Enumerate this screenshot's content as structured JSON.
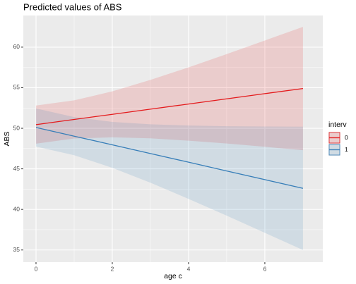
{
  "chart_data": {
    "type": "line",
    "title": "Predicted values of ABS",
    "x_label": "age c",
    "y_label": "ABS",
    "legend_title": "interv",
    "x": [
      0,
      1,
      2,
      3,
      4,
      5,
      6,
      7
    ],
    "xlim": [
      -0.333,
      7.52
    ],
    "xticks": [
      0,
      2,
      4,
      6
    ],
    "ylim": [
      33.5,
      63.9
    ],
    "yticks": [
      35,
      40,
      45,
      50,
      55,
      60
    ],
    "grid": true,
    "series": [
      {
        "name": "0",
        "color": "#e41a1c",
        "values": [
          50.45,
          51.09,
          51.72,
          52.36,
          52.99,
          53.63,
          54.27,
          54.9
        ],
        "upper": [
          52.8,
          53.44,
          54.55,
          55.96,
          57.51,
          59.14,
          60.82,
          62.5
        ],
        "lower": [
          48.1,
          48.74,
          48.89,
          48.76,
          48.47,
          48.12,
          47.72,
          47.3
        ]
      },
      {
        "name": "1",
        "color": "#377eb8",
        "values": [
          50.1,
          49.03,
          47.96,
          46.89,
          45.82,
          44.74,
          43.67,
          42.6
        ],
        "upper": [
          52.45,
          51.38,
          50.79,
          50.49,
          50.34,
          50.25,
          50.22,
          50.2
        ],
        "lower": [
          47.75,
          46.68,
          45.13,
          43.29,
          41.3,
          39.23,
          37.12,
          35.0
        ]
      }
    ]
  }
}
